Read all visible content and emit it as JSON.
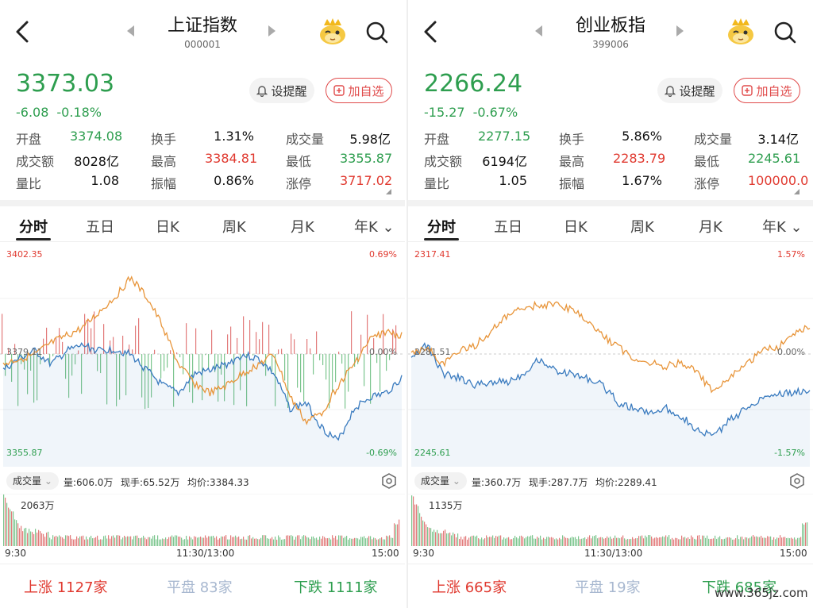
{
  "panels": [
    {
      "title": "上证指数",
      "code": "000001",
      "price": "3373.03",
      "change": "-6.08",
      "change_pct": "-0.18%",
      "alert_label": "设提醒",
      "add_label": "加自选",
      "stats": [
        [
          {
            "label": "开盘",
            "value": "3374.08",
            "color": "green"
          },
          {
            "label": "换手",
            "value": "1.31%",
            "color": ""
          },
          {
            "label": "成交量",
            "value": "5.98亿",
            "color": ""
          }
        ],
        [
          {
            "label": "成交额",
            "value": "8028亿",
            "color": ""
          },
          {
            "label": "最高",
            "value": "3384.81",
            "color": "red"
          },
          {
            "label": "最低",
            "value": "3355.87",
            "color": "green"
          }
        ],
        [
          {
            "label": "量比",
            "value": "1.08",
            "color": ""
          },
          {
            "label": "振幅",
            "value": "0.86%",
            "color": ""
          },
          {
            "label": "涨停",
            "value": "3717.02",
            "color": "red"
          }
        ]
      ],
      "tabs": [
        "分时",
        "五日",
        "日K",
        "周K",
        "月K",
        "年K"
      ],
      "chart": {
        "y_max": "3402.35",
        "y_max_pct": "0.69%",
        "y_mid": "3379.11",
        "y_mid_pct": "0.00%",
        "y_min": "3355.87",
        "y_min_pct": "-0.69%"
      },
      "volume": {
        "selector": "成交量",
        "vol": "量:606.0万",
        "now_hand": "现手:65.52万",
        "avg": "均价:3384.33",
        "max_vol": "2063万"
      },
      "times": [
        "9:30",
        "11:30/13:00",
        "15:00"
      ],
      "breadth": {
        "up_label": "上涨",
        "up": "1127家",
        "flat_label": "平盘",
        "flat": "83家",
        "down_label": "下跌",
        "down": "1111家"
      }
    },
    {
      "title": "创业板指",
      "code": "399006",
      "price": "2266.24",
      "change": "-15.27",
      "change_pct": "-0.67%",
      "alert_label": "设提醒",
      "add_label": "加自选",
      "stats": [
        [
          {
            "label": "开盘",
            "value": "2277.15",
            "color": "green"
          },
          {
            "label": "换手",
            "value": "5.86%",
            "color": ""
          },
          {
            "label": "成交量",
            "value": "3.14亿",
            "color": ""
          }
        ],
        [
          {
            "label": "成交额",
            "value": "6194亿",
            "color": ""
          },
          {
            "label": "最高",
            "value": "2283.79",
            "color": "red"
          },
          {
            "label": "最低",
            "value": "2245.61",
            "color": "green"
          }
        ],
        [
          {
            "label": "量比",
            "value": "1.05",
            "color": ""
          },
          {
            "label": "振幅",
            "value": "1.67%",
            "color": ""
          },
          {
            "label": "涨停",
            "value": "100000.0",
            "color": "red"
          }
        ]
      ],
      "tabs": [
        "分时",
        "五日",
        "日K",
        "周K",
        "月K",
        "年K"
      ],
      "chart": {
        "y_max": "2317.41",
        "y_max_pct": "1.57%",
        "y_mid": "2281.51",
        "y_mid_pct": "0.00%",
        "y_min": "2245.61",
        "y_min_pct": "-1.57%"
      },
      "volume": {
        "selector": "成交量",
        "vol": "量:360.7万",
        "now_hand": "现手:287.7万",
        "avg": "均价:2289.41",
        "max_vol": "1135万"
      },
      "times": [
        "9:30",
        "11:30/13:00",
        "15:00"
      ],
      "breadth": {
        "up_label": "上涨",
        "up": "665家",
        "flat_label": "平盘",
        "flat": "19家",
        "down_label": "下跌",
        "down": "685家"
      }
    }
  ],
  "watermark": "www.365jz.com",
  "colors": {
    "up": "#e0392f",
    "down": "#2e9e4f",
    "price_line": "#3a7bbf",
    "avg_line": "#e8953a",
    "flat": "#a8b8d0"
  }
}
